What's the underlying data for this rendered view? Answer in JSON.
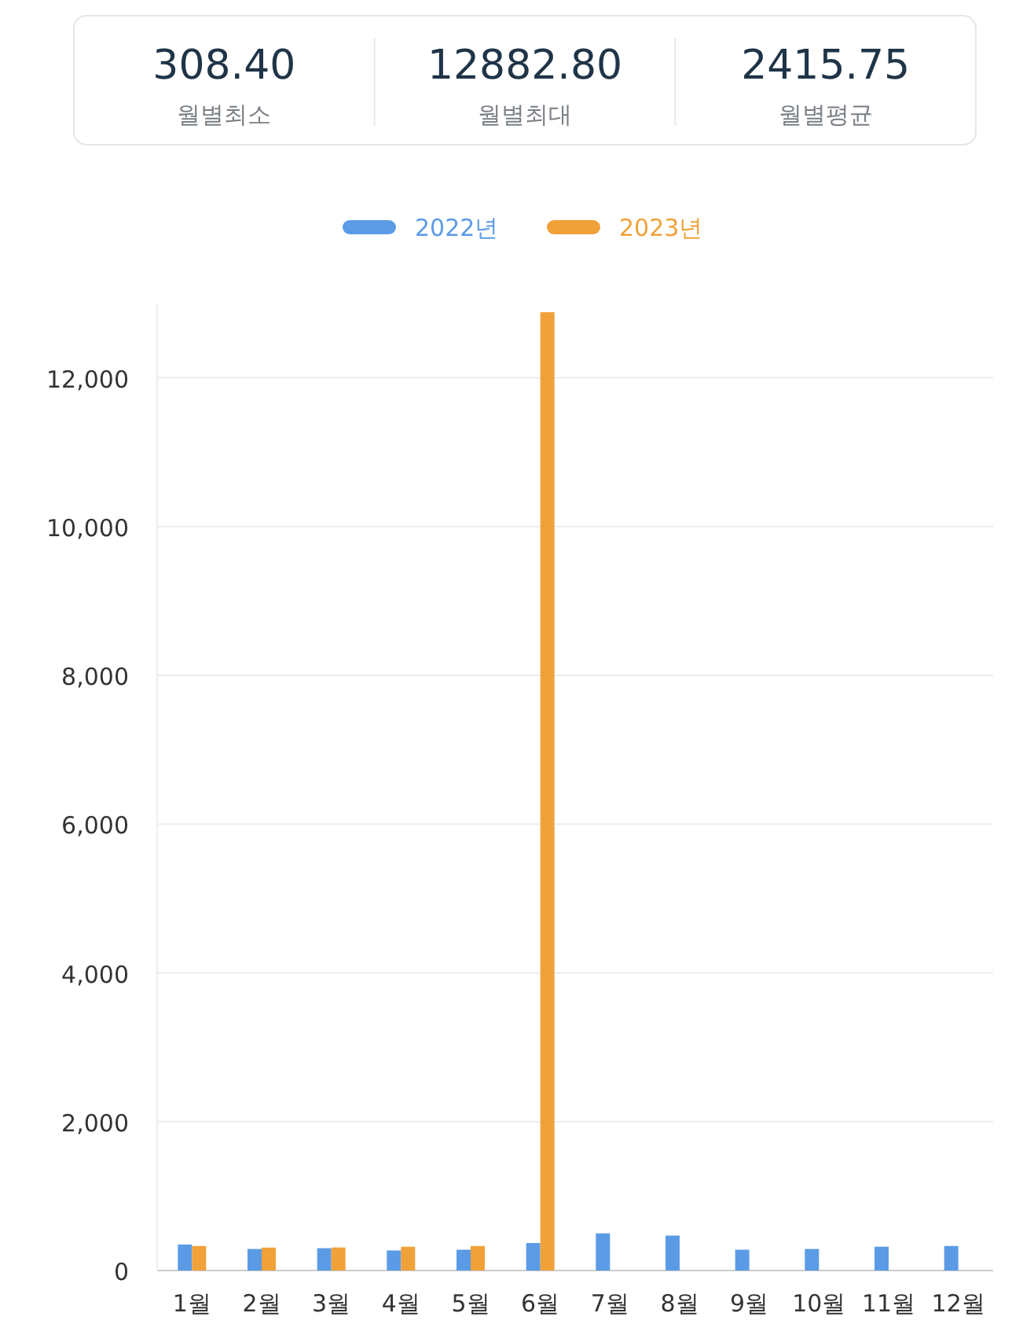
{
  "chart_data": [
    {
      "type": "other",
      "annotations": [
        "308.40",
        "월별최소",
        "12882.80",
        "월별최대",
        "2415.75",
        "월별평균"
      ]
    },
    {
      "type": "bar",
      "categories": [
        "1월",
        "2월",
        "3월",
        "4월",
        "5월",
        "6월",
        "7월",
        "8월",
        "9월",
        "10월",
        "11월",
        "12월"
      ],
      "series": [
        {
          "name": "2022년",
          "color": "#5b9be6",
          "values": [
            350,
            290,
            300,
            270,
            280,
            370,
            500,
            470,
            280,
            290,
            320,
            330
          ]
        },
        {
          "name": "2023년",
          "color": "#f0a13a",
          "values": [
            330,
            308.4,
            310,
            320,
            330,
            12882.8,
            null,
            null,
            null,
            null,
            null,
            null
          ]
        }
      ],
      "ylim": [
        0,
        13000
      ],
      "yticks": [
        {
          "value": 0,
          "label": "0"
        },
        {
          "value": 2000,
          "label": "2,000"
        },
        {
          "value": 4000,
          "label": "4,000"
        },
        {
          "value": 6000,
          "label": "6,000"
        },
        {
          "value": 8000,
          "label": "8,000"
        },
        {
          "value": 10000,
          "label": "10,000"
        },
        {
          "value": 12000,
          "label": "12,000"
        }
      ],
      "grid": "y",
      "legend": "top"
    }
  ]
}
